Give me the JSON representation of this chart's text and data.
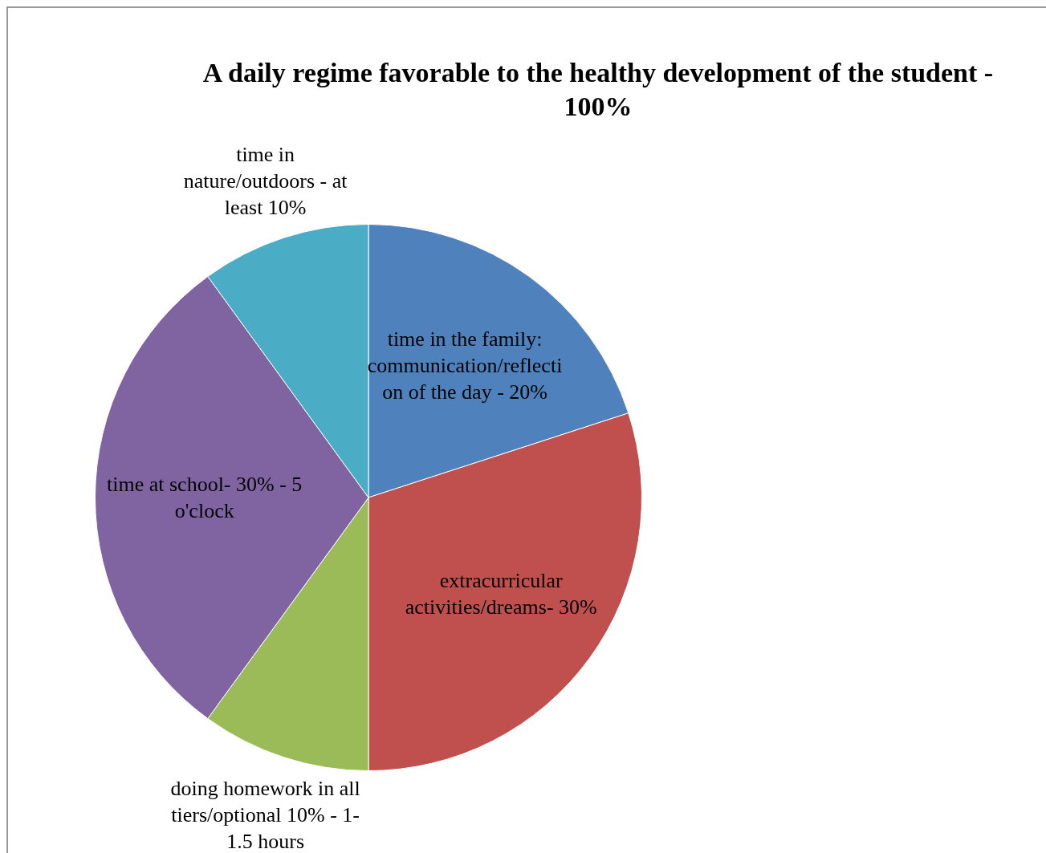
{
  "chart_data": {
    "type": "pie",
    "title": "A daily regime favorable to the healthy development of the student - 100%",
    "categories": [
      "time in the family: communication/reflection of the day - 20%",
      "extracurricular activities/dreams- 30%",
      "doing homework in all tiers/optional 10% - 1-1.5 hours",
      "time at school- 30% - 5 o'clock",
      "time in nature/outdoors - at least 10%"
    ],
    "values": [
      20,
      30,
      10,
      30,
      10
    ],
    "colors": [
      "#4f81bd",
      "#c0504d",
      "#9bbb59",
      "#8064a2",
      "#4bacc6"
    ],
    "legend": false
  }
}
